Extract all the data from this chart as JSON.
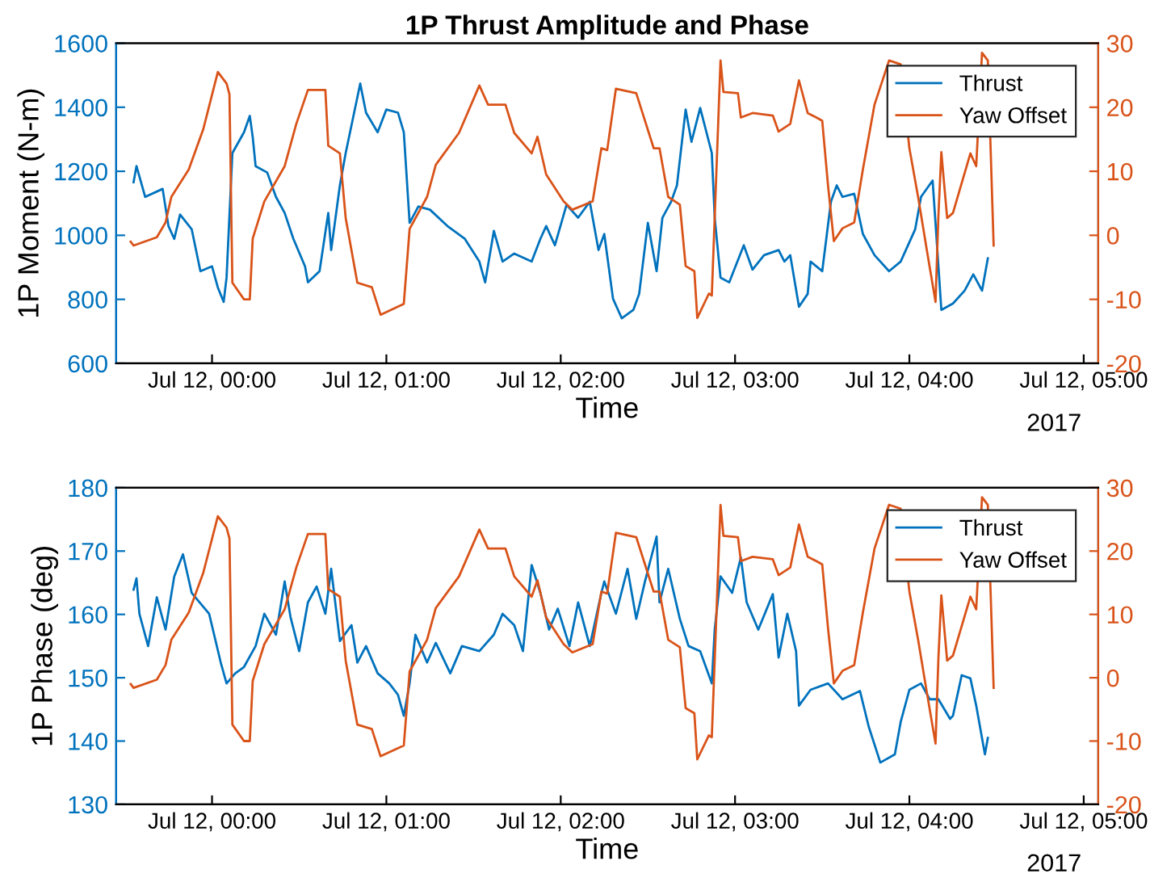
{
  "chart_data": [
    {
      "type": "line",
      "title": "1P Thrust Amplitude and Phase",
      "xlabel": "Time",
      "ylabel": "1P Moment (N-m)",
      "annotations": [
        "2017"
      ],
      "xlim": [
        "2017-07-11T23:27",
        "2017-07-12T05:05"
      ],
      "xticks": [
        {
          "value": "2017-07-12T00:00",
          "label": "Jul 12, 00:00"
        },
        {
          "value": "2017-07-12T01:00",
          "label": "Jul 12, 01:00"
        },
        {
          "value": "2017-07-12T02:00",
          "label": "Jul 12, 02:00"
        },
        {
          "value": "2017-07-12T03:00",
          "label": "Jul 12, 03:00"
        },
        {
          "value": "2017-07-12T04:00",
          "label": "Jul 12, 04:00"
        },
        {
          "value": "2017-07-12T05:00",
          "label": "Jul 12, 05:00"
        }
      ],
      "ylim": [
        600,
        1600
      ],
      "yticks": [
        600,
        800,
        1000,
        1200,
        1400,
        1600
      ],
      "y2lim": [
        -20,
        30
      ],
      "y2ticks": [
        -20,
        -10,
        0,
        10,
        20,
        30
      ],
      "legend": "top right",
      "line_style": "solid",
      "series": [
        {
          "name": "Thrust",
          "color": "#0072bd",
          "x": [
            "2017-07-11T23:33",
            "2017-07-11T23:34",
            "2017-07-11T23:37",
            "2017-07-11T23:43",
            "2017-07-11T23:45",
            "2017-07-11T23:47",
            "2017-07-11T23:49",
            "2017-07-11T23:53",
            "2017-07-11T23:56",
            "2017-07-12T00:00",
            "2017-07-12T00:02",
            "2017-07-12T00:04",
            "2017-07-12T00:05",
            "2017-07-12T00:07",
            "2017-07-12T00:11",
            "2017-07-12T00:13",
            "2017-07-12T00:14",
            "2017-07-12T00:15",
            "2017-07-12T00:19",
            "2017-07-12T00:22",
            "2017-07-12T00:25",
            "2017-07-12T00:28",
            "2017-07-12T00:32",
            "2017-07-12T00:33",
            "2017-07-12T00:37",
            "2017-07-12T00:40",
            "2017-07-12T00:41",
            "2017-07-12T00:44",
            "2017-07-12T00:46",
            "2017-07-12T00:51",
            "2017-07-12T00:53",
            "2017-07-12T00:57",
            "2017-07-12T01:00",
            "2017-07-12T01:04",
            "2017-07-12T01:06",
            "2017-07-12T01:08",
            "2017-07-12T01:11",
            "2017-07-12T01:15",
            "2017-07-12T01:21",
            "2017-07-12T01:27",
            "2017-07-12T01:32",
            "2017-07-12T01:34",
            "2017-07-12T01:37",
            "2017-07-12T01:40",
            "2017-07-12T01:44",
            "2017-07-12T01:50",
            "2017-07-12T01:53",
            "2017-07-12T01:55",
            "2017-07-12T01:58",
            "2017-07-12T02:02",
            "2017-07-12T02:06",
            "2017-07-12T02:10",
            "2017-07-12T02:13",
            "2017-07-12T02:15",
            "2017-07-12T02:18",
            "2017-07-12T02:21",
            "2017-07-12T02:25",
            "2017-07-12T02:27",
            "2017-07-12T02:30",
            "2017-07-12T02:33",
            "2017-07-12T02:35",
            "2017-07-12T02:38",
            "2017-07-12T02:40",
            "2017-07-12T02:43",
            "2017-07-12T02:45",
            "2017-07-12T02:48",
            "2017-07-12T02:52",
            "2017-07-12T02:53",
            "2017-07-12T02:55",
            "2017-07-12T02:58",
            "2017-07-12T03:03",
            "2017-07-12T03:06",
            "2017-07-12T03:10",
            "2017-07-12T03:15",
            "2017-07-12T03:17",
            "2017-07-12T03:19",
            "2017-07-12T03:22",
            "2017-07-12T03:25",
            "2017-07-12T03:26",
            "2017-07-12T03:30",
            "2017-07-12T03:33",
            "2017-07-12T03:35",
            "2017-07-12T03:37",
            "2017-07-12T03:41",
            "2017-07-12T03:44",
            "2017-07-12T03:48",
            "2017-07-12T03:53",
            "2017-07-12T03:57",
            "2017-07-12T04:02",
            "2017-07-12T04:04",
            "2017-07-12T04:08",
            "2017-07-12T04:10",
            "2017-07-12T04:11",
            "2017-07-12T04:15",
            "2017-07-12T04:19",
            "2017-07-12T04:22",
            "2017-07-12T04:25",
            "2017-07-12T04:27"
          ],
          "values": [
            1166,
            1216,
            1120,
            1145,
            1029,
            989,
            1065,
            1019,
            888,
            903,
            837,
            792,
            868,
            1257,
            1322,
            1373,
            1307,
            1216,
            1196,
            1120,
            1070,
            989,
            903,
            853,
            888,
            1070,
            954,
            1156,
            1257,
            1474,
            1383,
            1322,
            1393,
            1383,
            1322,
            1039,
            1090,
            1080,
            1029,
            989,
            918,
            853,
            1014,
            918,
            943,
            918,
            989,
            1029,
            969,
            1095,
            1055,
            1105,
            954,
            1004,
            802,
            741,
            767,
            817,
            1039,
            888,
            1055,
            1105,
            1156,
            1393,
            1292,
            1398,
            1257,
            1055,
            868,
            853,
            969,
            893,
            938,
            954,
            918,
            938,
            777,
            817,
            918,
            888,
            1105,
            1156,
            1120,
            1130,
            1004,
            938,
            888,
            918,
            1019,
            1120,
            1171,
            903,
            767,
            787,
            827,
            878,
            827,
            928
          ]
        },
        {
          "name": "Yaw Offset",
          "color": "#d95319",
          "axis": "y2",
          "x": [
            "2017-07-11T23:32",
            "2017-07-11T23:33",
            "2017-07-11T23:41",
            "2017-07-11T23:44",
            "2017-07-11T23:46",
            "2017-07-11T23:52",
            "2017-07-11T23:57",
            "2017-07-12T00:02",
            "2017-07-12T00:05",
            "2017-07-12T00:06",
            "2017-07-12T00:07",
            "2017-07-12T00:11",
            "2017-07-12T00:13",
            "2017-07-12T00:14",
            "2017-07-12T00:18",
            "2017-07-12T00:25",
            "2017-07-12T00:29",
            "2017-07-12T00:33",
            "2017-07-12T00:39",
            "2017-07-12T00:40",
            "2017-07-12T00:44",
            "2017-07-12T00:46",
            "2017-07-12T00:50",
            "2017-07-12T00:55",
            "2017-07-12T00:58",
            "2017-07-12T01:06",
            "2017-07-12T01:08",
            "2017-07-12T01:14",
            "2017-07-12T01:17",
            "2017-07-12T01:25",
            "2017-07-12T01:32",
            "2017-07-12T01:35",
            "2017-07-12T01:41",
            "2017-07-12T01:44",
            "2017-07-12T01:50",
            "2017-07-12T01:52",
            "2017-07-12T01:55",
            "2017-07-12T02:01",
            "2017-07-12T02:04",
            "2017-07-12T02:11",
            "2017-07-12T02:14",
            "2017-07-12T02:16",
            "2017-07-12T02:19",
            "2017-07-12T02:26",
            "2017-07-12T02:32",
            "2017-07-12T02:34",
            "2017-07-12T02:37",
            "2017-07-12T02:41",
            "2017-07-12T02:43",
            "2017-07-12T02:46",
            "2017-07-12T02:47",
            "2017-07-12T02:51",
            "2017-07-12T02:52",
            "2017-07-12T02:55",
            "2017-07-12T02:56",
            "2017-07-12T03:01",
            "2017-07-12T03:02",
            "2017-07-12T03:06",
            "2017-07-12T03:13",
            "2017-07-12T03:15",
            "2017-07-12T03:19",
            "2017-07-12T03:22",
            "2017-07-12T03:25",
            "2017-07-12T03:28",
            "2017-07-12T03:30",
            "2017-07-12T03:32",
            "2017-07-12T03:34",
            "2017-07-12T03:37",
            "2017-07-12T03:41",
            "2017-07-12T03:44",
            "2017-07-12T03:48",
            "2017-07-12T03:53",
            "2017-07-12T03:57",
            "2017-07-12T04:00",
            "2017-07-12T04:03",
            "2017-07-12T04:06",
            "2017-07-12T04:09",
            "2017-07-12T04:10",
            "2017-07-12T04:11",
            "2017-07-12T04:13",
            "2017-07-12T04:15",
            "2017-07-12T04:21",
            "2017-07-12T04:23",
            "2017-07-12T04:25",
            "2017-07-12T04:27",
            "2017-07-12T04:29"
          ],
          "values": [
            -1,
            -1.6,
            -0.3,
            2,
            6,
            10.3,
            16.6,
            25.5,
            23.7,
            22,
            -7.4,
            -10,
            -10,
            -0.5,
            5.3,
            10.8,
            17.4,
            22.7,
            22.7,
            14,
            12.8,
            2.7,
            -7.4,
            -8.1,
            -12.4,
            -10.7,
            1,
            6,
            11,
            16,
            23.4,
            20.4,
            20.4,
            16,
            12.8,
            15.4,
            9.5,
            5.3,
            4,
            5.3,
            13.6,
            13.3,
            22.9,
            22.2,
            13.6,
            13.6,
            6,
            4.8,
            -4.8,
            -5.6,
            -12.9,
            -9.1,
            -9.4,
            27.3,
            22.4,
            22.2,
            18.4,
            19.1,
            18.7,
            16.2,
            17.4,
            24.2,
            19.1,
            18.4,
            17.9,
            7.8,
            -0.9,
            1.1,
            2,
            10.3,
            20.4,
            27.3,
            26.7,
            13.6,
            6,
            -2.3,
            -10.4,
            3.2,
            13,
            2.7,
            3.5,
            12.8,
            10.8,
            28.5,
            27.3,
            -1.6
          ]
        }
      ]
    },
    {
      "type": "line",
      "xlabel": "Time",
      "ylabel": "1P Phase (deg)",
      "annotations": [
        "2017"
      ],
      "xlim": [
        "2017-07-11T23:27",
        "2017-07-12T05:05"
      ],
      "xticks": [
        {
          "value": "2017-07-12T00:00",
          "label": "Jul 12, 00:00"
        },
        {
          "value": "2017-07-12T01:00",
          "label": "Jul 12, 01:00"
        },
        {
          "value": "2017-07-12T02:00",
          "label": "Jul 12, 02:00"
        },
        {
          "value": "2017-07-12T03:00",
          "label": "Jul 12, 03:00"
        },
        {
          "value": "2017-07-12T04:00",
          "label": "Jul 12, 04:00"
        },
        {
          "value": "2017-07-12T05:00",
          "label": "Jul 12, 05:00"
        }
      ],
      "ylim": [
        130,
        180
      ],
      "yticks": [
        130,
        140,
        150,
        160,
        170,
        180
      ],
      "y2lim": [
        -20,
        30
      ],
      "y2ticks": [
        -20,
        -10,
        0,
        10,
        20,
        30
      ],
      "legend": "top right",
      "line_style": "solid",
      "series": [
        {
          "name": "Thrust",
          "color": "#0072bd",
          "x": [
            "2017-07-11T23:33",
            "2017-07-11T23:34",
            "2017-07-11T23:35",
            "2017-07-11T23:38",
            "2017-07-11T23:41",
            "2017-07-11T23:44",
            "2017-07-11T23:47",
            "2017-07-11T23:50",
            "2017-07-11T23:53",
            "2017-07-11T23:59",
            "2017-07-12T00:03",
            "2017-07-12T00:05",
            "2017-07-12T00:08",
            "2017-07-12T00:11",
            "2017-07-12T00:15",
            "2017-07-12T00:18",
            "2017-07-12T00:22",
            "2017-07-12T00:25",
            "2017-07-12T00:27",
            "2017-07-12T00:30",
            "2017-07-12T00:33",
            "2017-07-12T00:36",
            "2017-07-12T00:39",
            "2017-07-12T00:41",
            "2017-07-12T00:44",
            "2017-07-12T00:48",
            "2017-07-12T00:50",
            "2017-07-12T00:53",
            "2017-07-12T00:57",
            "2017-07-12T01:01",
            "2017-07-12T01:04",
            "2017-07-12T01:06",
            "2017-07-12T01:08",
            "2017-07-12T01:10",
            "2017-07-12T01:14",
            "2017-07-12T01:17",
            "2017-07-12T01:22",
            "2017-07-12T01:26",
            "2017-07-12T01:32",
            "2017-07-12T01:37",
            "2017-07-12T01:40",
            "2017-07-12T01:44",
            "2017-07-12T01:47",
            "2017-07-12T01:50",
            "2017-07-12T01:53",
            "2017-07-12T01:56",
            "2017-07-12T01:59",
            "2017-07-12T02:03",
            "2017-07-12T02:06",
            "2017-07-12T02:10",
            "2017-07-12T02:14",
            "2017-07-12T02:15",
            "2017-07-12T02:19",
            "2017-07-12T02:23",
            "2017-07-12T02:26",
            "2017-07-12T02:29",
            "2017-07-12T02:33",
            "2017-07-12T02:34",
            "2017-07-12T02:37",
            "2017-07-12T02:41",
            "2017-07-12T02:44",
            "2017-07-12T02:48",
            "2017-07-12T02:52",
            "2017-07-12T02:53",
            "2017-07-12T02:55",
            "2017-07-12T02:59",
            "2017-07-12T03:02",
            "2017-07-12T03:04",
            "2017-07-12T03:08",
            "2017-07-12T03:13",
            "2017-07-12T03:15",
            "2017-07-12T03:18",
            "2017-07-12T03:21",
            "2017-07-12T03:22",
            "2017-07-12T03:26",
            "2017-07-12T03:32",
            "2017-07-12T03:37",
            "2017-07-12T03:43",
            "2017-07-12T03:46",
            "2017-07-12T03:50",
            "2017-07-12T03:55",
            "2017-07-12T03:57",
            "2017-07-12T04:00",
            "2017-07-12T04:04",
            "2017-07-12T04:07",
            "2017-07-12T04:10",
            "2017-07-12T04:14",
            "2017-07-12T04:15",
            "2017-07-12T04:18",
            "2017-07-12T04:21",
            "2017-07-12T04:23",
            "2017-07-12T04:26",
            "2017-07-12T04:27"
          ],
          "values": [
            163.9,
            165.7,
            160.1,
            155,
            162.7,
            157.6,
            166,
            169.5,
            163.4,
            160.1,
            152.4,
            149.1,
            150.7,
            151.7,
            155,
            160.1,
            156.8,
            165.2,
            159.6,
            154.2,
            161.9,
            164.4,
            160.1,
            167.2,
            155.8,
            158.3,
            152.4,
            155,
            150.7,
            149.1,
            147.3,
            144,
            149.1,
            156.8,
            152.4,
            155.5,
            150.7,
            155,
            154.2,
            156.8,
            160.1,
            158.3,
            154.2,
            167.8,
            163.4,
            157.6,
            160.9,
            155,
            161.9,
            155,
            163.4,
            165.2,
            160.1,
            167.2,
            159.3,
            165.2,
            172.3,
            161.9,
            167.2,
            159.3,
            155,
            154.2,
            149.1,
            157.6,
            166,
            163.4,
            169,
            161.9,
            157.6,
            163.2,
            153.2,
            160.1,
            154.2,
            145.6,
            148.1,
            149.1,
            146.6,
            147.9,
            142.3,
            136.6,
            137.9,
            143,
            148.1,
            149.1,
            146.6,
            146.6,
            143.5,
            144,
            150.4,
            149.9,
            145.6,
            137.9,
            140.5
          ]
        },
        {
          "name": "Yaw Offset",
          "color": "#d95319",
          "axis": "y2",
          "x": [
            "2017-07-11T23:32",
            "2017-07-11T23:33",
            "2017-07-11T23:41",
            "2017-07-11T23:44",
            "2017-07-11T23:46",
            "2017-07-11T23:52",
            "2017-07-11T23:57",
            "2017-07-12T00:02",
            "2017-07-12T00:05",
            "2017-07-12T00:06",
            "2017-07-12T00:07",
            "2017-07-12T00:11",
            "2017-07-12T00:13",
            "2017-07-12T00:14",
            "2017-07-12T00:18",
            "2017-07-12T00:25",
            "2017-07-12T00:29",
            "2017-07-12T00:33",
            "2017-07-12T00:39",
            "2017-07-12T00:40",
            "2017-07-12T00:44",
            "2017-07-12T00:46",
            "2017-07-12T00:50",
            "2017-07-12T00:55",
            "2017-07-12T00:58",
            "2017-07-12T01:06",
            "2017-07-12T01:08",
            "2017-07-12T01:14",
            "2017-07-12T01:17",
            "2017-07-12T01:25",
            "2017-07-12T01:32",
            "2017-07-12T01:35",
            "2017-07-12T01:41",
            "2017-07-12T01:44",
            "2017-07-12T01:50",
            "2017-07-12T01:52",
            "2017-07-12T01:55",
            "2017-07-12T02:01",
            "2017-07-12T02:04",
            "2017-07-12T02:11",
            "2017-07-12T02:14",
            "2017-07-12T02:16",
            "2017-07-12T02:19",
            "2017-07-12T02:26",
            "2017-07-12T02:32",
            "2017-07-12T02:34",
            "2017-07-12T02:37",
            "2017-07-12T02:41",
            "2017-07-12T02:43",
            "2017-07-12T02:46",
            "2017-07-12T02:47",
            "2017-07-12T02:51",
            "2017-07-12T02:52",
            "2017-07-12T02:55",
            "2017-07-12T02:56",
            "2017-07-12T03:01",
            "2017-07-12T03:02",
            "2017-07-12T03:06",
            "2017-07-12T03:13",
            "2017-07-12T03:15",
            "2017-07-12T03:19",
            "2017-07-12T03:22",
            "2017-07-12T03:25",
            "2017-07-12T03:28",
            "2017-07-12T03:30",
            "2017-07-12T03:32",
            "2017-07-12T03:34",
            "2017-07-12T03:37",
            "2017-07-12T03:41",
            "2017-07-12T03:44",
            "2017-07-12T03:48",
            "2017-07-12T03:53",
            "2017-07-12T03:57",
            "2017-07-12T04:00",
            "2017-07-12T04:03",
            "2017-07-12T04:06",
            "2017-07-12T04:09",
            "2017-07-12T04:10",
            "2017-07-12T04:11",
            "2017-07-12T04:13",
            "2017-07-12T04:15",
            "2017-07-12T04:21",
            "2017-07-12T04:23",
            "2017-07-12T04:25",
            "2017-07-12T04:27",
            "2017-07-12T04:29"
          ],
          "values": [
            -1,
            -1.6,
            -0.3,
            2,
            6,
            10.3,
            16.6,
            25.5,
            23.7,
            22,
            -7.4,
            -10,
            -10,
            -0.5,
            5.3,
            10.8,
            17.4,
            22.7,
            22.7,
            14,
            12.8,
            2.7,
            -7.4,
            -8.1,
            -12.4,
            -10.7,
            1,
            6,
            11,
            16,
            23.4,
            20.4,
            20.4,
            16,
            12.8,
            15.4,
            9.5,
            5.3,
            4,
            5.3,
            13.6,
            13.3,
            22.9,
            22.2,
            13.6,
            13.6,
            6,
            4.8,
            -4.8,
            -5.6,
            -12.9,
            -9.1,
            -9.4,
            27.3,
            22.4,
            22.2,
            18.4,
            19.1,
            18.7,
            16.2,
            17.4,
            24.2,
            19.1,
            18.4,
            17.9,
            7.8,
            -0.9,
            1.1,
            2,
            10.3,
            20.4,
            27.3,
            26.7,
            13.6,
            6,
            -2.3,
            -10.4,
            3.2,
            13,
            2.7,
            3.5,
            12.8,
            10.8,
            28.5,
            27.3,
            -1.6
          ]
        }
      ]
    }
  ]
}
